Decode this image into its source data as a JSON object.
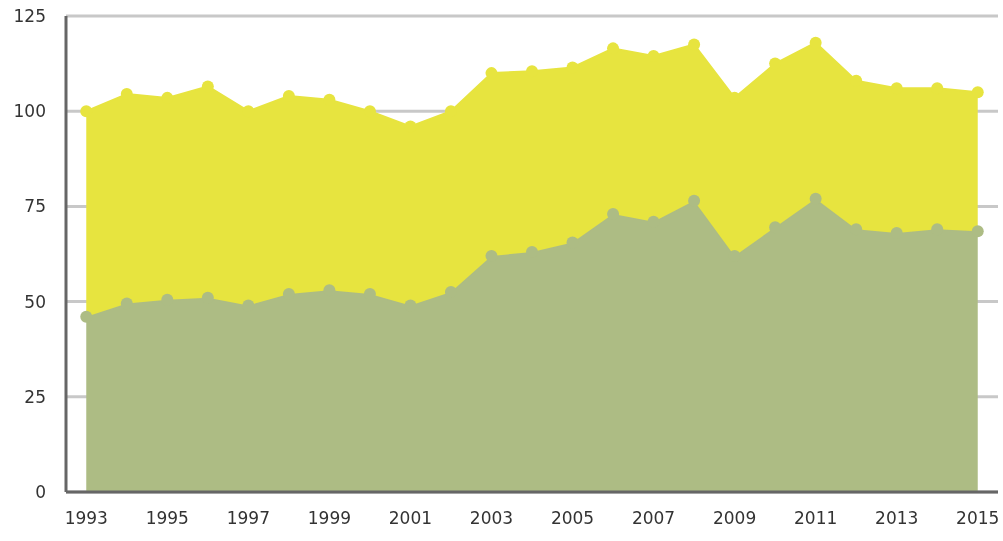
{
  "chart_data": {
    "type": "area",
    "stacked": true,
    "x": [
      1993,
      1994,
      1995,
      1996,
      1997,
      1998,
      1999,
      2000,
      2001,
      2002,
      2003,
      2004,
      2005,
      2006,
      2007,
      2008,
      2009,
      2010,
      2011,
      2012,
      2013,
      2014,
      2015
    ],
    "series": [
      {
        "color": "#adbc84",
        "values": [
          46,
          49.5,
          50.5,
          51,
          49,
          52,
          53,
          52,
          49,
          52.5,
          62,
          63,
          65.5,
          73,
          71,
          76.5,
          62,
          69.5,
          77,
          69,
          68,
          69,
          68.5
        ]
      },
      {
        "color": "#e7e43f",
        "values": [
          54,
          55,
          53,
          55.5,
          51,
          52,
          50,
          48,
          47,
          47.5,
          48,
          47.5,
          46,
          43.5,
          43.5,
          41,
          41.5,
          43,
          41,
          39,
          38,
          37,
          36.5
        ]
      }
    ],
    "xlim": [
      1992.5,
      2015.5
    ],
    "xticks": [
      1993,
      1995,
      1997,
      1999,
      2001,
      2003,
      2005,
      2007,
      2009,
      2011,
      2013,
      2015
    ],
    "ylim": [
      0,
      125
    ],
    "yticks": [
      0,
      25,
      50,
      75,
      100,
      125
    ],
    "grid": "y",
    "marker": "circle",
    "legend": false
  }
}
